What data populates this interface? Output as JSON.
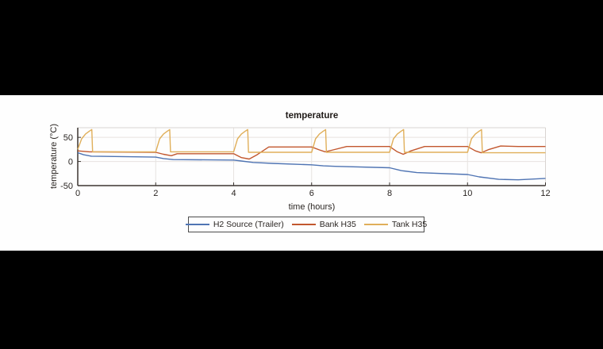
{
  "figure": {
    "background_color": "#000000",
    "panel_color": "#fefefe"
  },
  "chart_data": {
    "type": "line",
    "title": "temperature",
    "xlabel": "time (hours)",
    "ylabel": "temperature (°C)",
    "xlim": [
      0,
      12
    ],
    "ylim": [
      -50,
      70
    ],
    "xticks": [
      0,
      2,
      4,
      6,
      8,
      10,
      12
    ],
    "yticks": [
      -50,
      0,
      50
    ],
    "grid": true,
    "legend_position": "below-axis",
    "axis_color": "#3b3531",
    "grid_color": "#e7e3e0",
    "box_color": "#d8d4d1",
    "tick_label_color": "#2a2522",
    "series": [
      {
        "name": "H2 Source (Trailer)",
        "color": "#4f74b3",
        "points": [
          [
            0,
            18
          ],
          [
            0.15,
            14
          ],
          [
            0.35,
            11
          ],
          [
            2,
            9
          ],
          [
            2.2,
            6
          ],
          [
            2.45,
            4
          ],
          [
            4,
            3
          ],
          [
            4.2,
            1
          ],
          [
            4.5,
            -2
          ],
          [
            5,
            -4
          ],
          [
            6,
            -7
          ],
          [
            6.3,
            -9
          ],
          [
            6.6,
            -10
          ],
          [
            8,
            -13
          ],
          [
            8.3,
            -19
          ],
          [
            8.7,
            -23
          ],
          [
            10,
            -27
          ],
          [
            10.3,
            -32
          ],
          [
            10.8,
            -37
          ],
          [
            11.3,
            -38
          ],
          [
            12,
            -35
          ]
        ]
      },
      {
        "name": "Bank H35",
        "color": "#c2572e",
        "points": [
          [
            0,
            22
          ],
          [
            0.3,
            20
          ],
          [
            2,
            19
          ],
          [
            2.2,
            15
          ],
          [
            2.4,
            12
          ],
          [
            2.55,
            16
          ],
          [
            4,
            16
          ],
          [
            4.2,
            8
          ],
          [
            4.4,
            5
          ],
          [
            4.6,
            14
          ],
          [
            4.9,
            30
          ],
          [
            6,
            30
          ],
          [
            6.2,
            24
          ],
          [
            6.35,
            20
          ],
          [
            6.55,
            24
          ],
          [
            6.9,
            31
          ],
          [
            8,
            31
          ],
          [
            8.2,
            20
          ],
          [
            8.35,
            15
          ],
          [
            8.55,
            22
          ],
          [
            8.9,
            31
          ],
          [
            10,
            31
          ],
          [
            10.2,
            22
          ],
          [
            10.35,
            18
          ],
          [
            10.55,
            25
          ],
          [
            10.85,
            32
          ],
          [
            11.3,
            31
          ],
          [
            12,
            31
          ]
        ]
      },
      {
        "name": "Tank H35",
        "color": "#e0af5a",
        "points": [
          [
            0,
            25
          ],
          [
            0.1,
            47
          ],
          [
            0.2,
            57
          ],
          [
            0.3,
            63
          ],
          [
            0.36,
            66
          ],
          [
            0.38,
            20
          ],
          [
            2,
            20
          ],
          [
            2.1,
            47
          ],
          [
            2.2,
            57
          ],
          [
            2.3,
            63
          ],
          [
            2.36,
            66
          ],
          [
            2.38,
            20
          ],
          [
            4,
            20
          ],
          [
            4.1,
            47
          ],
          [
            4.2,
            57
          ],
          [
            4.3,
            63
          ],
          [
            4.36,
            66
          ],
          [
            4.38,
            19
          ],
          [
            6,
            19
          ],
          [
            6.1,
            47
          ],
          [
            6.2,
            57
          ],
          [
            6.3,
            63
          ],
          [
            6.36,
            66
          ],
          [
            6.38,
            19
          ],
          [
            8,
            19
          ],
          [
            8.1,
            47
          ],
          [
            8.2,
            57
          ],
          [
            8.3,
            63
          ],
          [
            8.36,
            66
          ],
          [
            8.38,
            19
          ],
          [
            10,
            19
          ],
          [
            10.1,
            47
          ],
          [
            10.2,
            57
          ],
          [
            10.3,
            63
          ],
          [
            10.36,
            66
          ],
          [
            10.38,
            18
          ],
          [
            12,
            18
          ]
        ]
      }
    ]
  }
}
